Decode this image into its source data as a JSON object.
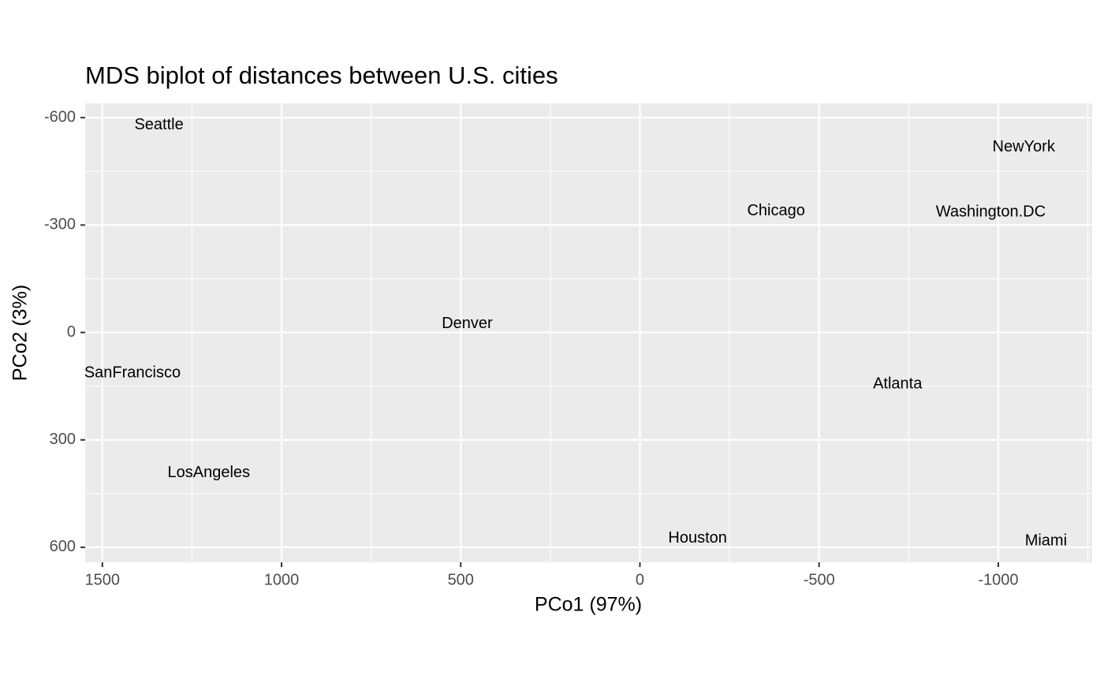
{
  "chart_data": {
    "type": "scatter",
    "title": "MDS biplot of distances between U.S. cities",
    "x_label": "PCo1 (97%)",
    "y_label": "PCo2 (3%)",
    "labels": [
      "Seattle",
      "NewYork",
      "Chicago",
      "Washington.DC",
      "Denver",
      "SanFrancisco",
      "Atlanta",
      "LosAngeles",
      "Houston",
      "Miami"
    ],
    "x": [
      1342,
      -1071,
      -380,
      -979,
      482,
      1416,
      -719,
      1203,
      -161,
      -1133
    ],
    "y": [
      -579,
      -517,
      -339,
      -335,
      -24,
      114,
      145,
      392,
      575,
      583
    ],
    "xlim": [
      1548,
      -1262
    ],
    "ylim": [
      -640,
      642
    ],
    "xticks": [
      1500,
      1000,
      500,
      0,
      -500,
      -1000
    ],
    "yticks": [
      -600,
      -300,
      0,
      300,
      600
    ],
    "grid": true,
    "panel_color": "#ebebeb"
  }
}
